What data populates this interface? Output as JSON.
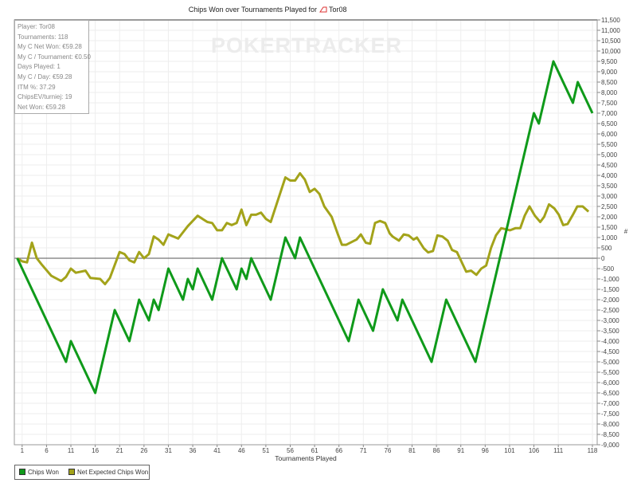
{
  "chart_data": {
    "type": "line",
    "title": "Chips Won over Tournaments Played for",
    "player_name": "Tor08",
    "xlabel": "Tournaments Played",
    "ylabel": "#",
    "xlim": [
      0,
      118
    ],
    "ylim": [
      -9000,
      11500
    ],
    "x_ticks": [
      1,
      6,
      11,
      16,
      21,
      26,
      31,
      36,
      41,
      46,
      51,
      56,
      61,
      66,
      71,
      76,
      81,
      86,
      91,
      96,
      101,
      106,
      111,
      118
    ],
    "y_tick_step": 500,
    "grid": true,
    "legend_position": "bottom-left",
    "watermark": "POKERTRACKER",
    "series": [
      {
        "name": "Chips Won",
        "color": "#0f9a1a",
        "points": [
          [
            0,
            0
          ],
          [
            10,
            -5000
          ],
          [
            11,
            -4000
          ],
          [
            16,
            -6500
          ],
          [
            20,
            -2500
          ],
          [
            23,
            -4000
          ],
          [
            25,
            -2000
          ],
          [
            27,
            -3000
          ],
          [
            28,
            -2000
          ],
          [
            29,
            -2500
          ],
          [
            31,
            -500
          ],
          [
            34,
            -2000
          ],
          [
            35,
            -1000
          ],
          [
            36,
            -1500
          ],
          [
            37,
            -500
          ],
          [
            40,
            -2000
          ],
          [
            42,
            0
          ],
          [
            45,
            -1500
          ],
          [
            46,
            -500
          ],
          [
            47,
            -1000
          ],
          [
            48,
            0
          ],
          [
            52,
            -2000
          ],
          [
            55,
            1000
          ],
          [
            57,
            0
          ],
          [
            58,
            1000
          ],
          [
            68,
            -4000
          ],
          [
            70,
            -2000
          ],
          [
            73,
            -3500
          ],
          [
            75,
            -1500
          ],
          [
            78,
            -3000
          ],
          [
            79,
            -2000
          ],
          [
            85,
            -5000
          ],
          [
            88,
            -2000
          ],
          [
            94,
            -5000
          ],
          [
            106,
            7000
          ],
          [
            107,
            6500
          ],
          [
            110,
            9500
          ],
          [
            114,
            7500
          ],
          [
            115,
            8500
          ],
          [
            118,
            7000
          ]
        ]
      },
      {
        "name": "Net Expected Chips Won",
        "color": "#a3a31a",
        "points": [
          [
            0,
            0
          ],
          [
            1,
            -150
          ],
          [
            2,
            -200
          ],
          [
            3,
            750
          ],
          [
            4,
            0
          ],
          [
            5,
            -300
          ],
          [
            7,
            -850
          ],
          [
            9,
            -1100
          ],
          [
            10,
            -900
          ],
          [
            11,
            -500
          ],
          [
            12,
            -700
          ],
          [
            14,
            -600
          ],
          [
            15,
            -950
          ],
          [
            17,
            -1000
          ],
          [
            18,
            -1250
          ],
          [
            19,
            -950
          ],
          [
            21,
            300
          ],
          [
            22,
            200
          ],
          [
            23,
            -100
          ],
          [
            24,
            -200
          ],
          [
            25,
            300
          ],
          [
            26,
            0
          ],
          [
            27,
            200
          ],
          [
            28,
            1050
          ],
          [
            29,
            900
          ],
          [
            30,
            650
          ],
          [
            31,
            1150
          ],
          [
            33,
            950
          ],
          [
            34,
            1250
          ],
          [
            35,
            1550
          ],
          [
            37,
            2050
          ],
          [
            38,
            1900
          ],
          [
            39,
            1750
          ],
          [
            40,
            1700
          ],
          [
            41,
            1350
          ],
          [
            42,
            1350
          ],
          [
            43,
            1700
          ],
          [
            44,
            1600
          ],
          [
            45,
            1700
          ],
          [
            46,
            2350
          ],
          [
            47,
            1600
          ],
          [
            48,
            2100
          ],
          [
            49,
            2100
          ],
          [
            50,
            2200
          ],
          [
            51,
            1900
          ],
          [
            52,
            1750
          ],
          [
            55,
            3900
          ],
          [
            56,
            3750
          ],
          [
            57,
            3750
          ],
          [
            58,
            4100
          ],
          [
            59,
            3800
          ],
          [
            60,
            3200
          ],
          [
            61,
            3350
          ],
          [
            62,
            3100
          ],
          [
            63,
            2500
          ],
          [
            64.5,
            2000
          ],
          [
            65.7,
            1200
          ],
          [
            66.6,
            650
          ],
          [
            67.5,
            650
          ],
          [
            69.6,
            900
          ],
          [
            70.5,
            1150
          ],
          [
            71.5,
            750
          ],
          [
            72.4,
            700
          ],
          [
            73.4,
            1700
          ],
          [
            74.4,
            1800
          ],
          [
            75.5,
            1700
          ],
          [
            76.4,
            1200
          ],
          [
            77,
            1050
          ],
          [
            78.3,
            850
          ],
          [
            79.3,
            1150
          ],
          [
            80.3,
            1100
          ],
          [
            81.3,
            900
          ],
          [
            82,
            1000
          ],
          [
            83.4,
            480
          ],
          [
            84.3,
            280
          ],
          [
            85.3,
            350
          ],
          [
            86.2,
            1100
          ],
          [
            87.2,
            1050
          ],
          [
            88.3,
            850
          ],
          [
            89.2,
            400
          ],
          [
            90.2,
            300
          ],
          [
            91.3,
            -250
          ],
          [
            92.1,
            -650
          ],
          [
            93.1,
            -600
          ],
          [
            94.2,
            -800
          ],
          [
            95.2,
            -500
          ],
          [
            96.2,
            -350
          ],
          [
            97.2,
            500
          ],
          [
            98.2,
            1100
          ],
          [
            99.3,
            1450
          ],
          [
            100.2,
            1400
          ],
          [
            101.1,
            1350
          ],
          [
            102.2,
            1450
          ],
          [
            103.2,
            1450
          ],
          [
            104.1,
            2050
          ],
          [
            105.1,
            2500
          ],
          [
            106.2,
            2050
          ],
          [
            107.3,
            1750
          ],
          [
            108.1,
            2000
          ],
          [
            109.1,
            2600
          ],
          [
            110.2,
            2400
          ],
          [
            111.1,
            2100
          ],
          [
            112,
            1600
          ],
          [
            112.9,
            1650
          ],
          [
            114,
            2100
          ],
          [
            114.9,
            2500
          ],
          [
            116,
            2500
          ],
          [
            117.2,
            2250
          ]
        ]
      }
    ]
  },
  "stats": {
    "player": "Player: Tor08",
    "tournaments": "Tournaments: 118",
    "net_won": "My C Net Won: €59.28",
    "per_tournament": "My C / Tournament: €0.50",
    "days_played": "Days Played: 1",
    "per_day": "My C / Day: €59.28",
    "itm": "ITM %: 37.29",
    "chips_ev": "ChipsEV/turniej: 19",
    "net_won2": "Net Won: €59.28"
  },
  "legend": {
    "chips_won": "Chips Won",
    "net_expected": "Net Expected Chips Won"
  }
}
